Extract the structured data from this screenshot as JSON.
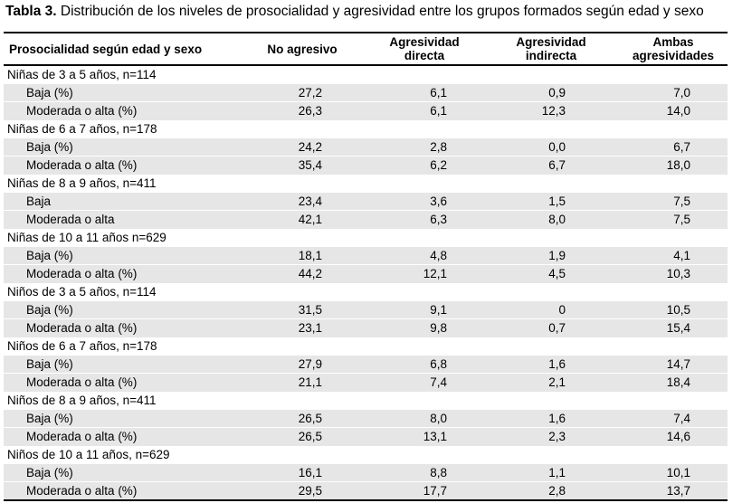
{
  "caption": {
    "label": "Tabla 3.",
    "text": " Distribución de los niveles de prosocialidad y agresividad entre los grupos formados según edad y sexo"
  },
  "columns": {
    "c0": "Prosocialidad según edad y sexo",
    "c1": "No agresivo",
    "c2_l1": "Agresividad",
    "c2_l2": "directa",
    "c3_l1": "Agresividad",
    "c3_l2": "indirecta",
    "c4_l1": "Ambas",
    "c4_l2": "agresividades"
  },
  "groups": [
    {
      "title": "Niñas de 3 a 5 años, n=114",
      "rows": [
        {
          "label": "Baja (%)",
          "v": [
            "27,2",
            "6,1",
            "0,9",
            "7,0"
          ]
        },
        {
          "label": "Moderada o alta (%)",
          "v": [
            "26,3",
            "6,1",
            "12,3",
            "14,0"
          ]
        }
      ]
    },
    {
      "title": "Niñas de 6 a 7 años, n=178",
      "rows": [
        {
          "label": "Baja (%)",
          "v": [
            "24,2",
            "2,8",
            "0,0",
            "6,7"
          ]
        },
        {
          "label": "Moderada o alta (%)",
          "v": [
            "35,4",
            "6,2",
            "6,7",
            "18,0"
          ]
        }
      ]
    },
    {
      "title": "Niñas de 8 a 9 años, n=411",
      "rows": [
        {
          "label": "Baja",
          "v": [
            "23,4",
            "3,6",
            "1,5",
            "7,5"
          ]
        },
        {
          "label": "Moderada o alta",
          "v": [
            "42,1",
            "6,3",
            "8,0",
            "7,5"
          ]
        }
      ]
    },
    {
      "title": "Niñas de 10 a 11 años n=629",
      "rows": [
        {
          "label": "Baja (%)",
          "v": [
            "18,1",
            "4,8",
            "1,9",
            "4,1"
          ]
        },
        {
          "label": "Moderada o alta (%)",
          "v": [
            "44,2",
            "12,1",
            "4,5",
            "10,3"
          ]
        }
      ]
    },
    {
      "title": "Niños de  3 a 5 años, n=114",
      "rows": [
        {
          "label": "Baja (%)",
          "v": [
            "31,5",
            "9,1",
            "0",
            "10,5"
          ]
        },
        {
          "label": "Moderada o alta (%)",
          "v": [
            "23,1",
            "9,8",
            "0,7",
            "15,4"
          ]
        }
      ]
    },
    {
      "title": "Niños de 6 a 7 años, n=178",
      "rows": [
        {
          "label": "Baja (%)",
          "v": [
            "27,9",
            "6,8",
            "1,6",
            "14,7"
          ]
        },
        {
          "label": "Moderada o alta (%)",
          "v": [
            "21,1",
            "7,4",
            "2,1",
            "18,4"
          ]
        }
      ]
    },
    {
      "title": "Niños de 8 a 9 años, n=411",
      "rows": [
        {
          "label": "Baja (%)",
          "v": [
            "26,5",
            "8,0",
            "1,6",
            "7,4"
          ]
        },
        {
          "label": "Moderada o alta (%)",
          "v": [
            "26,5",
            "13,1",
            "2,3",
            "14,6"
          ]
        }
      ]
    },
    {
      "title": "Niños de 10 a 11 años, n=629",
      "rows": [
        {
          "label": "Baja (%)",
          "v": [
            "16,1",
            "8,8",
            "1,1",
            "10,1"
          ]
        },
        {
          "label": "Moderada o alta (%)",
          "v": [
            "29,5",
            "17,7",
            "2,8",
            "13,7"
          ]
        }
      ]
    }
  ]
}
